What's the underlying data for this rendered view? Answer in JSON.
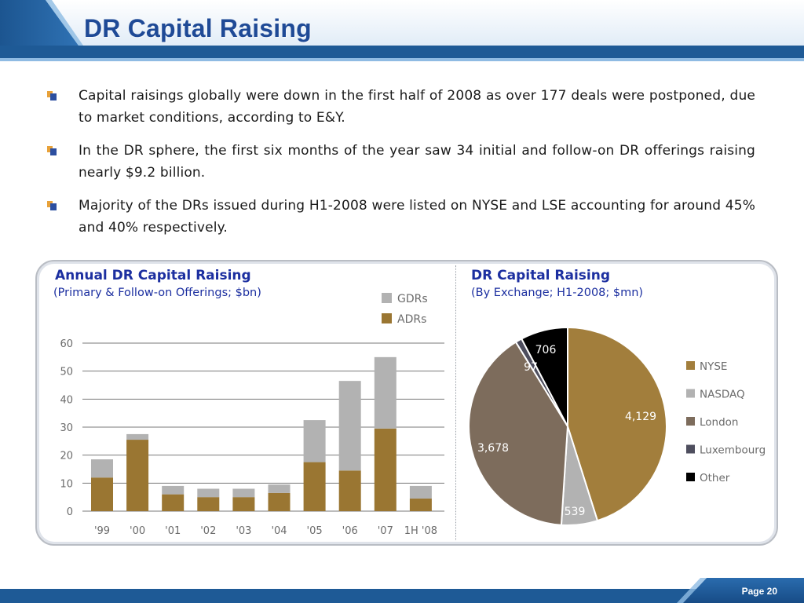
{
  "header": {
    "title": "DR Capital Raising"
  },
  "bullets": [
    "Capital raisings globally were down in the first half of 2008 as over 177 deals were postponed, due to market conditions, according to E&Y.",
    "In the DR sphere, the first six months of the year saw 34 initial and follow-on DR offerings raising nearly $9.2 billion.",
    "Majority of the DRs issued during H1-2008 were listed on NYSE and LSE accounting for around 45% and 40% respectively."
  ],
  "colors": {
    "adr": "#9a7632",
    "gdr": "#b2b2b2",
    "nyse": "#a27e3c",
    "nasdaq": "#b2b2b2",
    "london": "#7d6c5c",
    "luxembourg": "#4e4e5e",
    "other": "#000000",
    "title_blue": "#1f4a96"
  },
  "chart_data": [
    {
      "type": "bar",
      "stacked": true,
      "title": "Annual DR Capital Raising",
      "subtitle": "(Primary & Follow-on Offerings; $bn)",
      "categories": [
        "'99",
        "'00",
        "'01",
        "'02",
        "'03",
        "'04",
        "'05",
        "'06",
        "'07",
        "1H '08"
      ],
      "series": [
        {
          "name": "ADRs",
          "values": [
            12,
            25.5,
            6,
            5,
            5,
            6.5,
            17.5,
            14.5,
            29.5,
            4.5
          ]
        },
        {
          "name": "GDRs",
          "values": [
            6.5,
            2,
            3,
            3,
            3,
            3,
            15,
            32,
            25.5,
            4.5
          ]
        }
      ],
      "ylim": [
        0,
        60
      ],
      "yticks": [
        0,
        10,
        20,
        30,
        40,
        50,
        60
      ],
      "grid": true,
      "legend": "top-right"
    },
    {
      "type": "pie",
      "title": "DR Capital Raising",
      "subtitle": "(By Exchange; H1-2008; $mn)",
      "slices": [
        {
          "label": "NYSE",
          "value": 4129,
          "value_label": "4,129"
        },
        {
          "label": "NASDAQ",
          "value": 539,
          "value_label": "539"
        },
        {
          "label": "London",
          "value": 3678,
          "value_label": "3,678"
        },
        {
          "label": "Luxembourg",
          "value": 97,
          "value_label": "97"
        },
        {
          "label": "Other",
          "value": 706,
          "value_label": "706"
        }
      ],
      "legend": "right"
    }
  ],
  "footer": {
    "page": "Page 20"
  }
}
